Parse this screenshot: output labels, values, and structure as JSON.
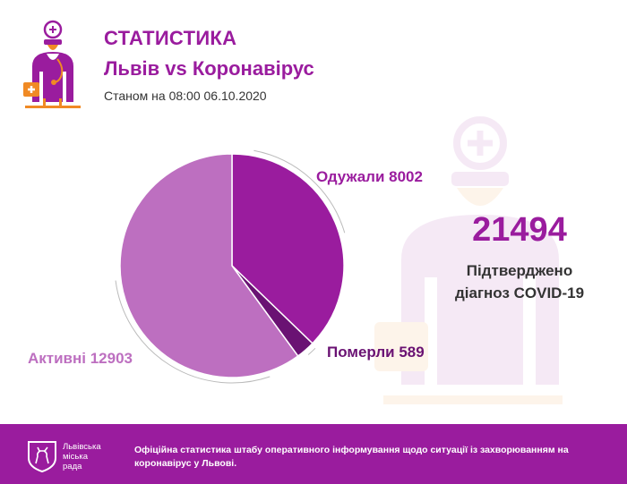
{
  "header": {
    "title": "СТАТИСТИКА",
    "subtitle": "Львів vs Коронавірус",
    "as_of_prefix": "Станом на",
    "as_of_datetime": "08:00 06.10.2020"
  },
  "summary": {
    "total": "21494",
    "caption_line1": "Підтверджено",
    "caption_line2": "діагноз COVID-19"
  },
  "chart_data": {
    "type": "pie",
    "slices": [
      {
        "label": "Одужали",
        "value": 8002,
        "display": "Одужали 8002",
        "color": "#9a1c9e"
      },
      {
        "label": "Померли",
        "value": 589,
        "display": "Померли 589",
        "color": "#6a1273"
      },
      {
        "label": "Активні",
        "value": 12903,
        "display": "Активні 12903",
        "color": "#bd6fc0"
      }
    ]
  },
  "footer": {
    "org_name": "Львівська міська рада",
    "org_line1": "Львівська",
    "org_line2": "міська",
    "org_line3": "рада",
    "text": "Офіційна статистика штабу оперативного інформування щодо ситуації із захворюванням на коронавірус у Львові."
  },
  "colors": {
    "brand": "#9a1c9e",
    "text": "#333333",
    "accent_orange": "#f08a24"
  },
  "icons": {
    "header_logo": "doctor-icon",
    "watermark": "doctor-watermark-icon",
    "footer_logo": "lion-emblem-icon"
  }
}
